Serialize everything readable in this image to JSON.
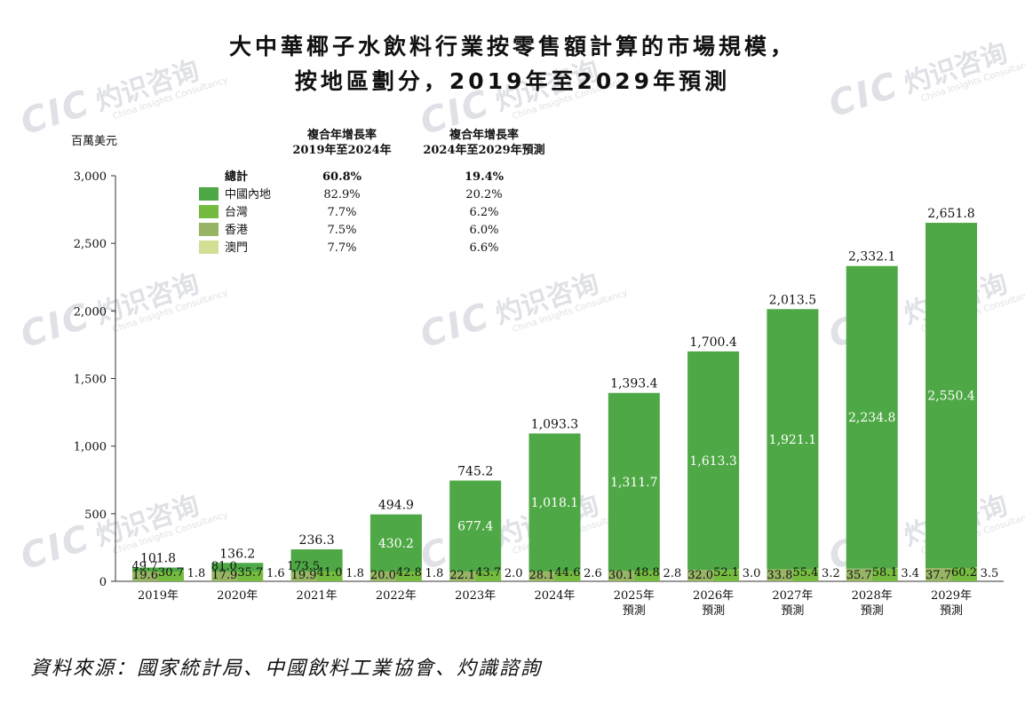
{
  "title_line1": "大中華椰子水飲料行業按零售額計算的市場規模，",
  "title_line2": "按地區劃分，2019年至2029年預測",
  "source": "資料來源：國家統計局、中國飲料工業協會、灼識諮詢",
  "watermark": {
    "brand": "CIC",
    "cn": "灼识咨询",
    "en": "China Insights Consultancy"
  },
  "cagr_table": {
    "col1_header": [
      "複合年增長率",
      "2019年至2024年"
    ],
    "col2_header": [
      "複合年增長率",
      "2024年至2029年預測"
    ],
    "rows": [
      {
        "label": "總計",
        "c1": "60.8%",
        "c2": "19.4%",
        "color": ""
      },
      {
        "label": "中國內地",
        "c1": "82.9%",
        "c2": "20.2%",
        "color": "#4ea845"
      },
      {
        "label": "台灣",
        "c1": "7.7%",
        "c2": "6.2%",
        "color": "#75bb3f"
      },
      {
        "label": "香港",
        "c1": "7.5%",
        "c2": "6.0%",
        "color": "#97b564"
      },
      {
        "label": "澳門",
        "c1": "7.7%",
        "c2": "6.6%",
        "color": "#d3dd93"
      }
    ]
  },
  "chart_data": {
    "type": "bar",
    "stacked": true,
    "ylabel": "百萬美元",
    "ylim": [
      0,
      3000
    ],
    "yticks": [
      0,
      500,
      1000,
      1500,
      2000,
      2500,
      3000
    ],
    "ytick_labels": [
      "0",
      "500",
      "1,000",
      "1,500",
      "2,000",
      "2,500",
      "3,000"
    ],
    "categories": [
      [
        "2019年"
      ],
      [
        "2020年"
      ],
      [
        "2021年"
      ],
      [
        "2022年"
      ],
      [
        "2023年"
      ],
      [
        "2024年"
      ],
      [
        "2025年",
        "預測"
      ],
      [
        "2026年",
        "預測"
      ],
      [
        "2027年",
        "預測"
      ],
      [
        "2028年",
        "預測"
      ],
      [
        "2029年",
        "預測"
      ]
    ],
    "totals": [
      101.8,
      136.2,
      236.3,
      494.9,
      745.2,
      1093.3,
      1393.4,
      1700.4,
      2013.5,
      2332.1,
      2651.8
    ],
    "total_labels": [
      "101.8",
      "136.2",
      "236.3",
      "494.9",
      "745.2",
      "1,093.3",
      "1,393.4",
      "1,700.4",
      "2,013.5",
      "2,332.1",
      "2,651.8"
    ],
    "series": [
      {
        "name": "澳門",
        "color": "#d3dd93",
        "values": [
          1.8,
          1.6,
          1.8,
          1.8,
          2.0,
          2.6,
          2.8,
          3.0,
          3.2,
          3.4,
          3.5
        ],
        "labels": [
          "1.8",
          "1.6",
          "1.8",
          "1.8",
          "2.0",
          "2.6",
          "2.8",
          "3.0",
          "3.2",
          "3.4",
          "3.5"
        ]
      },
      {
        "name": "香港",
        "color": "#97b564",
        "values": [
          19.6,
          17.9,
          19.9,
          20.0,
          22.1,
          28.1,
          30.1,
          32.0,
          33.8,
          35.7,
          37.7
        ],
        "labels": [
          "19.6",
          "17.9",
          "19.9",
          "20.0",
          "22.1",
          "28.1",
          "30.1",
          "32.0",
          "33.8",
          "35.7",
          "37.7"
        ]
      },
      {
        "name": "台灣",
        "color": "#75bb3f",
        "values": [
          30.7,
          35.7,
          41.0,
          42.8,
          43.7,
          44.6,
          48.8,
          52.1,
          55.4,
          58.1,
          60.2
        ],
        "labels": [
          "30.7",
          "35.7",
          "41.0",
          "42.8",
          "43.7",
          "44.6",
          "48.8",
          "52.1",
          "55.4",
          "58.1",
          "60.2"
        ]
      },
      {
        "name": "中國內地",
        "color": "#4ea845",
        "values": [
          49.7,
          81.0,
          173.5,
          430.2,
          677.4,
          1018.1,
          1311.7,
          1613.3,
          1921.1,
          2234.8,
          2550.4
        ],
        "labels": [
          "49.7",
          "81.0",
          "173.5",
          "430.2",
          "677.4",
          "1,018.1",
          "1,311.7",
          "1,613.3",
          "1,921.1",
          "2,234.8",
          "2,550.4"
        ]
      }
    ]
  }
}
